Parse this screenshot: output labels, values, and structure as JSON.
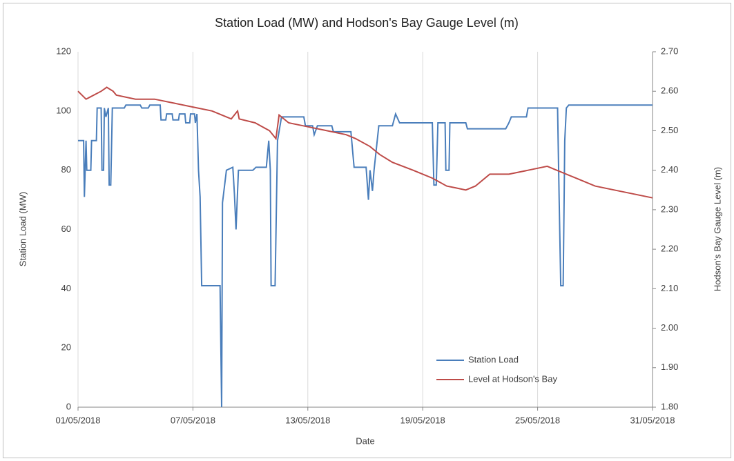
{
  "chart_data": {
    "type": "line",
    "title": "Station Load (MW) and Hodson's Bay Gauge Level (m)",
    "x_label": "Date",
    "y_label": "Station Load (MW)",
    "y2_label": "Hodson's Bay Gauge Level (m)",
    "xlim": [
      "2018-05-01",
      "2018-05-31"
    ],
    "xticks": [
      {
        "value": "2018-05-01",
        "label": "01/05/2018"
      },
      {
        "value": "2018-05-07",
        "label": "07/05/2018"
      },
      {
        "value": "2018-05-13",
        "label": "13/05/2018"
      },
      {
        "value": "2018-05-19",
        "label": "19/05/2018"
      },
      {
        "value": "2018-05-25",
        "label": "25/05/2018"
      },
      {
        "value": "2018-05-31",
        "label": "31/05/2018"
      }
    ],
    "ylim": [
      0,
      120
    ],
    "yticks": [
      0,
      20,
      40,
      60,
      80,
      100,
      120
    ],
    "y2lim": [
      1.8,
      2.7
    ],
    "y2ticks": [
      {
        "value": 1.8,
        "label": "1.80"
      },
      {
        "value": 1.9,
        "label": "1.90"
      },
      {
        "value": 2.0,
        "label": "2.00"
      },
      {
        "value": 2.1,
        "label": "2.10"
      },
      {
        "value": 2.2,
        "label": "2.20"
      },
      {
        "value": 2.3,
        "label": "2.30"
      },
      {
        "value": 2.4,
        "label": "2.40"
      },
      {
        "value": 2.5,
        "label": "2.50"
      },
      {
        "value": 2.6,
        "label": "2.60"
      },
      {
        "value": 2.7,
        "label": "2.70"
      }
    ],
    "grid": "x",
    "legend": "lower right",
    "series": [
      {
        "name": "Station Load",
        "color": "#4a7ebb",
        "axis": "y",
        "x": [
          "2018-05-01T00:00",
          "2018-05-01T07:00",
          "2018-05-01T08:00",
          "2018-05-01T10:00",
          "2018-05-01T11:00",
          "2018-05-01T16:00",
          "2018-05-01T17:00",
          "2018-05-01T23:00",
          "2018-05-02T00:00",
          "2018-05-02T05:00",
          "2018-05-02T06:00",
          "2018-05-02T08:00",
          "2018-05-02T09:00",
          "2018-05-02T11:00",
          "2018-05-02T14:00",
          "2018-05-02T15:00",
          "2018-05-02T17:00",
          "2018-05-02T19:00",
          "2018-05-03T10:00",
          "2018-05-03T12:00",
          "2018-05-04T06:00",
          "2018-05-04T08:00",
          "2018-05-04T16:00",
          "2018-05-04T18:00",
          "2018-05-05T07:00",
          "2018-05-05T08:00",
          "2018-05-05T14:00",
          "2018-05-05T15:00",
          "2018-05-05T22:00",
          "2018-05-05T23:00",
          "2018-05-06T06:00",
          "2018-05-06T07:00",
          "2018-05-06T14:00",
          "2018-05-06T15:00",
          "2018-05-06T20:00",
          "2018-05-06T21:00",
          "2018-05-07T02:00",
          "2018-05-07T03:00",
          "2018-05-07T05:00",
          "2018-05-07T07:00",
          "2018-05-07T09:00",
          "2018-05-07T11:00",
          "2018-05-08T10:00",
          "2018-05-08T12:00",
          "2018-05-08T13:00",
          "2018-05-08T18:00",
          "2018-05-09T02:00",
          "2018-05-09T04:00",
          "2018-05-09T06:00",
          "2018-05-09T09:00",
          "2018-05-10T03:00",
          "2018-05-10T07:00",
          "2018-05-10T20:00",
          "2018-05-10T23:00",
          "2018-05-11T01:00",
          "2018-05-11T02:00",
          "2018-05-11T07:00",
          "2018-05-11T10:00",
          "2018-05-11T15:00",
          "2018-05-12T19:00",
          "2018-05-12T21:00",
          "2018-05-13T06:00",
          "2018-05-13T08:00",
          "2018-05-13T12:00",
          "2018-05-14T06:00",
          "2018-05-14T08:00",
          "2018-05-15T06:00",
          "2018-05-15T10:00",
          "2018-05-16T01:00",
          "2018-05-16T04:00",
          "2018-05-16T06:00",
          "2018-05-16T09:00",
          "2018-05-16T11:00",
          "2018-05-16T17:00",
          "2018-05-17T10:00",
          "2018-05-17T14:00",
          "2018-05-17T19:00",
          "2018-05-19T12:00",
          "2018-05-19T14:00",
          "2018-05-19T17:00",
          "2018-05-19T19:00",
          "2018-05-20T04:00",
          "2018-05-20T05:00",
          "2018-05-20T09:00",
          "2018-05-20T10:00",
          "2018-05-21T06:00",
          "2018-05-21T08:00",
          "2018-05-23T08:00",
          "2018-05-23T12:00",
          "2018-05-23T15:00",
          "2018-05-24T10:00",
          "2018-05-24T12:00",
          "2018-05-26T01:00",
          "2018-05-26T03:00",
          "2018-05-26T05:00",
          "2018-05-26T08:00",
          "2018-05-26T10:00",
          "2018-05-26T12:00",
          "2018-05-26T15:00",
          "2018-05-31T00:00"
        ],
        "values": [
          90,
          90,
          71,
          90,
          80,
          80,
          90,
          90,
          101,
          101,
          80,
          80,
          101,
          98,
          101,
          75,
          75,
          101,
          101,
          102,
          102,
          101,
          101,
          102,
          102,
          97,
          97,
          99,
          99,
          97,
          97,
          99,
          99,
          96,
          96,
          99,
          99,
          96,
          99,
          80,
          71,
          41,
          41,
          0,
          69,
          80,
          81,
          72,
          60,
          80,
          80,
          81,
          81,
          90,
          80,
          41,
          41,
          90,
          98,
          98,
          95,
          95,
          92,
          95,
          95,
          93,
          93,
          81,
          81,
          70,
          80,
          73,
          80,
          95,
          95,
          99,
          96,
          96,
          75,
          75,
          96,
          96,
          80,
          80,
          96,
          96,
          94,
          94,
          96,
          98,
          98,
          101,
          101,
          70,
          41,
          41,
          90,
          101,
          102,
          102
        ]
      },
      {
        "name": "Level at Hodson's Bay",
        "color": "#be4b48",
        "axis": "y2",
        "x": [
          "2018-05-01T00:00",
          "2018-05-01T10:00",
          "2018-05-02T05:00",
          "2018-05-02T12:00",
          "2018-05-02T20:00",
          "2018-05-03T00:00",
          "2018-05-04T00:00",
          "2018-05-05T00:00",
          "2018-05-06T00:00",
          "2018-05-07T00:00",
          "2018-05-08T00:00",
          "2018-05-08T12:00",
          "2018-05-09T00:00",
          "2018-05-09T08:00",
          "2018-05-09T10:00",
          "2018-05-10T06:00",
          "2018-05-11T00:00",
          "2018-05-11T08:00",
          "2018-05-11T12:00",
          "2018-05-12T00:00",
          "2018-05-13T00:00",
          "2018-05-14T00:00",
          "2018-05-15T00:00",
          "2018-05-15T12:00",
          "2018-05-16T06:00",
          "2018-05-16T18:00",
          "2018-05-17T10:00",
          "2018-05-18T12:00",
          "2018-05-19T12:00",
          "2018-05-20T06:00",
          "2018-05-20T18:00",
          "2018-05-21T06:00",
          "2018-05-21T18:00",
          "2018-05-22T12:00",
          "2018-05-23T12:00",
          "2018-05-24T12:00",
          "2018-05-25T12:00",
          "2018-05-26T00:00",
          "2018-05-27T00:00",
          "2018-05-28T00:00",
          "2018-05-29T00:00",
          "2018-05-31T00:00"
        ],
        "values": [
          2.6,
          2.58,
          2.6,
          2.61,
          2.6,
          2.59,
          2.58,
          2.58,
          2.57,
          2.56,
          2.55,
          2.54,
          2.53,
          2.55,
          2.53,
          2.52,
          2.5,
          2.48,
          2.54,
          2.52,
          2.51,
          2.5,
          2.49,
          2.48,
          2.46,
          2.44,
          2.42,
          2.4,
          2.38,
          2.36,
          2.355,
          2.35,
          2.36,
          2.39,
          2.39,
          2.4,
          2.41,
          2.4,
          2.38,
          2.36,
          2.35,
          2.33
        ]
      }
    ]
  }
}
